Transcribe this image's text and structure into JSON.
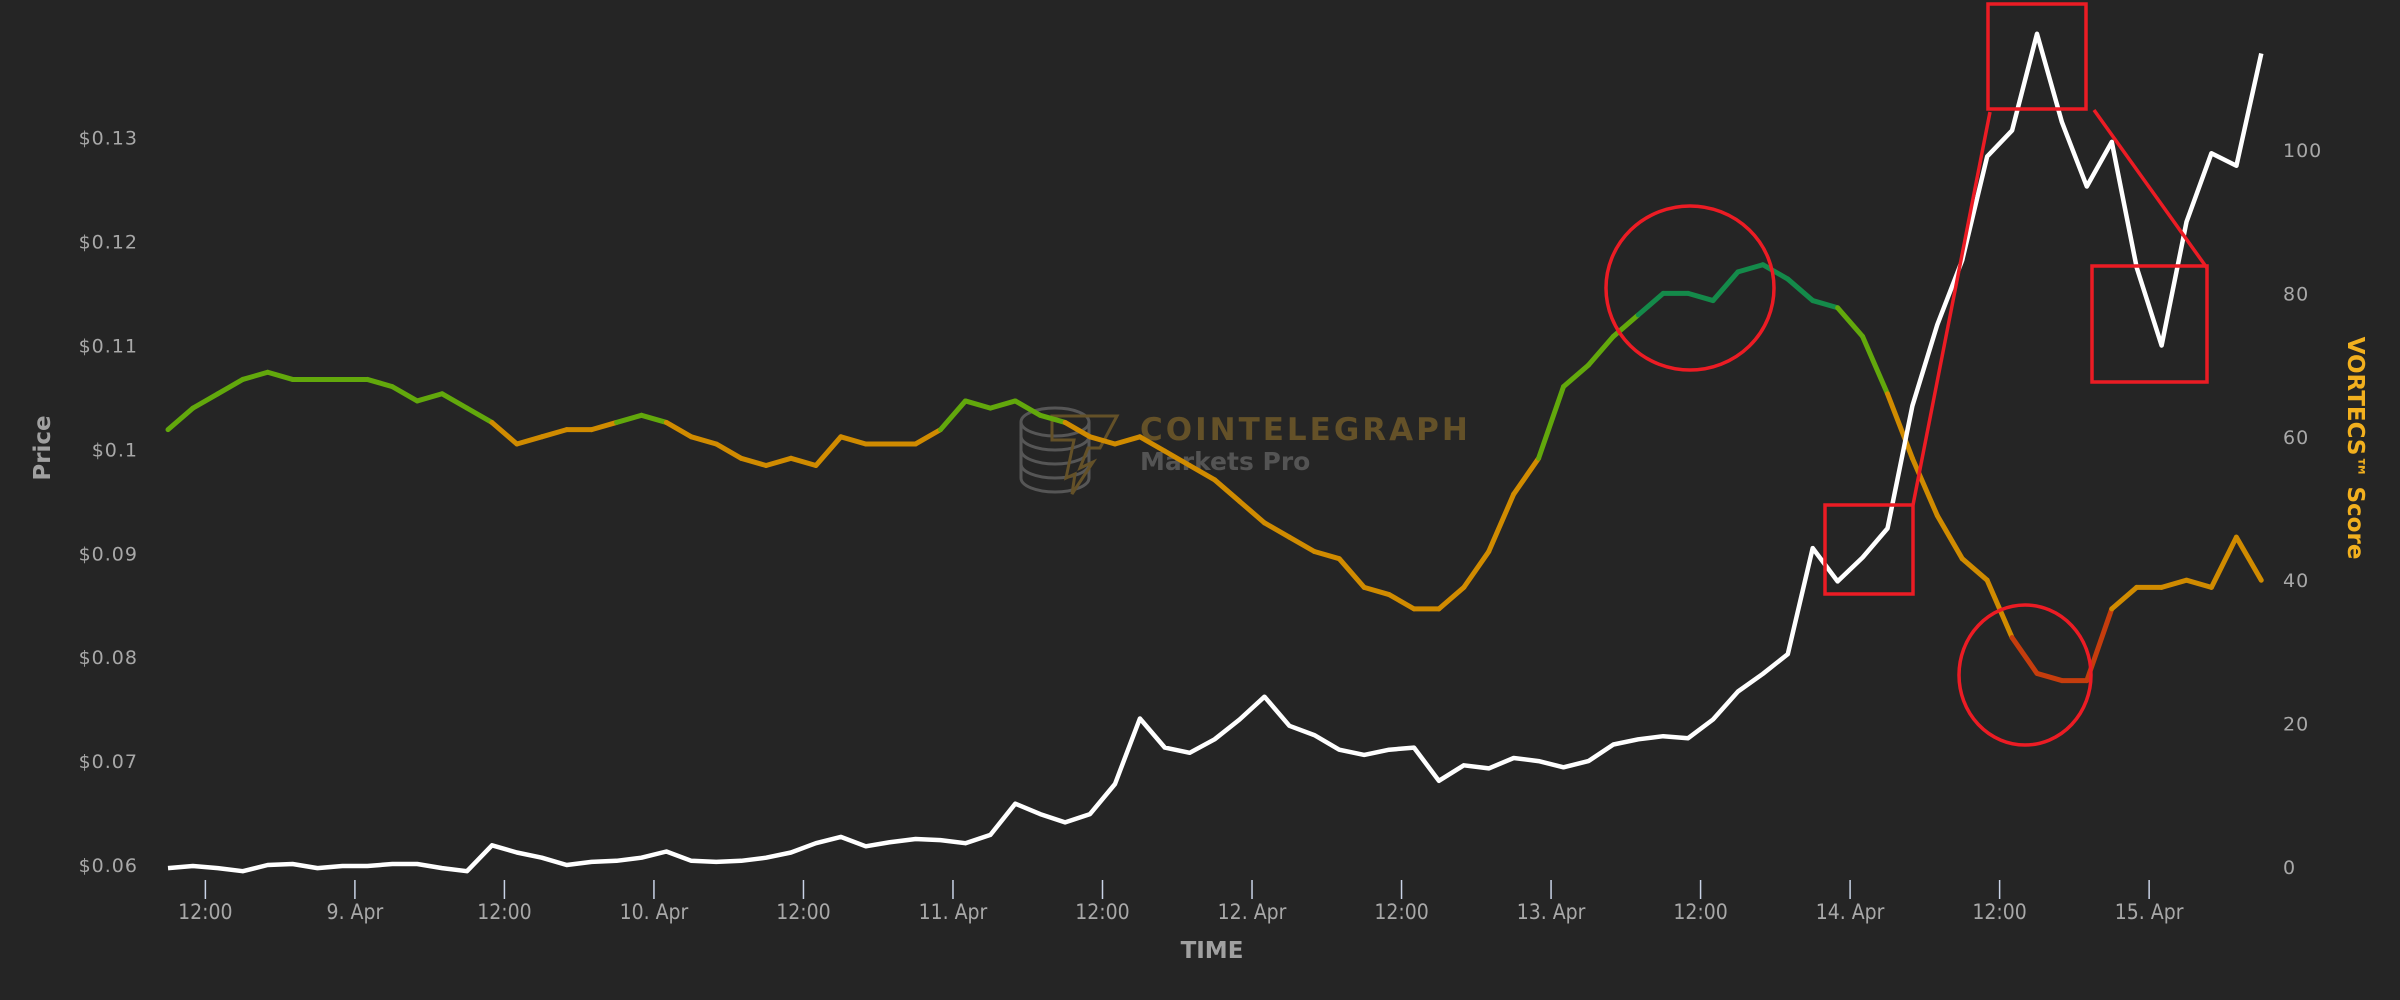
{
  "chart_data": {
    "type": "line",
    "xlabel": "TIME",
    "ylabel_left": "Price",
    "ylabel_right": "VORTECS™ Score",
    "watermark": {
      "title": "COINTELEGRAPH",
      "subtitle": "Markets Pro"
    },
    "grid": false,
    "legend": "none",
    "y_left": {
      "ylim": [
        0.06,
        0.13
      ],
      "ticks": [
        0.06,
        0.07,
        0.08,
        0.09,
        0.1,
        0.11,
        0.12,
        0.13
      ],
      "tick_labels": [
        "$0.06",
        "$0.07",
        "$0.08",
        "$0.09",
        "$0.1",
        "$0.11",
        "$0.12",
        "$0.13"
      ]
    },
    "y_right": {
      "ylim": [
        0,
        100
      ],
      "ticks": [
        0,
        20,
        40,
        60,
        80,
        100
      ],
      "tick_labels": [
        "0",
        "20",
        "40",
        "60",
        "80",
        "100"
      ]
    },
    "x_ticks": [
      {
        "t": "8 Apr 12:00",
        "label": "12:00"
      },
      {
        "t": "9 Apr 00:00",
        "label": "9. Apr"
      },
      {
        "t": "9 Apr 12:00",
        "label": "12:00"
      },
      {
        "t": "10 Apr 00:00",
        "label": "10. Apr"
      },
      {
        "t": "10 Apr 12:00",
        "label": "12:00"
      },
      {
        "t": "11 Apr 00:00",
        "label": "11. Apr"
      },
      {
        "t": "11 Apr 12:00",
        "label": "12:00"
      },
      {
        "t": "12 Apr 00:00",
        "label": "12. Apr"
      },
      {
        "t": "12 Apr 12:00",
        "label": "12:00"
      },
      {
        "t": "13 Apr 00:00",
        "label": "13. Apr"
      },
      {
        "t": "13 Apr 12:00",
        "label": "12:00"
      },
      {
        "t": "14 Apr 00:00",
        "label": "14. Apr"
      },
      {
        "t": "14 Apr 12:00",
        "label": "12:00"
      },
      {
        "t": "15 Apr 00:00",
        "label": "15. Apr"
      }
    ],
    "x": [
      "8 Apr 09:00",
      "8 Apr 11:00",
      "8 Apr 13:00",
      "8 Apr 15:00",
      "8 Apr 17:00",
      "8 Apr 19:00",
      "8 Apr 21:00",
      "8 Apr 23:00",
      "9 Apr 01:00",
      "9 Apr 03:00",
      "9 Apr 05:00",
      "9 Apr 07:00",
      "9 Apr 09:00",
      "9 Apr 11:00",
      "9 Apr 13:00",
      "9 Apr 15:00",
      "9 Apr 17:00",
      "9 Apr 19:00",
      "9 Apr 21:00",
      "9 Apr 23:00",
      "10 Apr 01:00",
      "10 Apr 03:00",
      "10 Apr 05:00",
      "10 Apr 07:00",
      "10 Apr 09:00",
      "10 Apr 11:00",
      "10 Apr 13:00",
      "10 Apr 15:00",
      "10 Apr 17:00",
      "10 Apr 19:00",
      "10 Apr 21:00",
      "10 Apr 23:00",
      "11 Apr 01:00",
      "11 Apr 03:00",
      "11 Apr 05:00",
      "11 Apr 07:00",
      "11 Apr 09:00",
      "11 Apr 11:00",
      "11 Apr 13:00",
      "11 Apr 15:00",
      "11 Apr 17:00",
      "11 Apr 19:00",
      "11 Apr 21:00",
      "11 Apr 23:00",
      "12 Apr 01:00",
      "12 Apr 03:00",
      "12 Apr 05:00",
      "12 Apr 07:00",
      "12 Apr 09:00",
      "12 Apr 11:00",
      "12 Apr 13:00",
      "12 Apr 15:00",
      "12 Apr 17:00",
      "12 Apr 19:00",
      "12 Apr 21:00",
      "12 Apr 23:00",
      "13 Apr 01:00",
      "13 Apr 03:00",
      "13 Apr 05:00",
      "13 Apr 07:00",
      "13 Apr 09:00",
      "13 Apr 11:00",
      "13 Apr 13:00",
      "13 Apr 15:00",
      "13 Apr 17:00",
      "13 Apr 19:00",
      "13 Apr 21:00",
      "13 Apr 23:00",
      "14 Apr 01:00",
      "14 Apr 03:00",
      "14 Apr 05:00",
      "14 Apr 07:00",
      "14 Apr 09:00",
      "14 Apr 11:00",
      "14 Apr 13:00",
      "14 Apr 15:00",
      "14 Apr 17:00",
      "14 Apr 19:00",
      "14 Apr 21:00",
      "14 Apr 23:00",
      "15 Apr 01:00",
      "15 Apr 03:00",
      "15 Apr 05:00",
      "15 Apr 07:00",
      "15 Apr 09:00"
    ],
    "series": [
      {
        "axis": "left",
        "color": "#ffffff",
        "values": [
          0.0597,
          0.0599,
          0.0597,
          0.0594,
          0.06,
          0.0601,
          0.0597,
          0.0599,
          0.0599,
          0.0601,
          0.0601,
          0.0597,
          0.0594,
          0.0619,
          0.0612,
          0.0607,
          0.06,
          0.0603,
          0.0604,
          0.0607,
          0.0613,
          0.0604,
          0.0603,
          0.0604,
          0.0607,
          0.0612,
          0.0621,
          0.0627,
          0.0618,
          0.0622,
          0.0625,
          0.0624,
          0.0621,
          0.0629,
          0.0659,
          0.0649,
          0.0641,
          0.0649,
          0.0678,
          0.0741,
          0.0713,
          0.0708,
          0.0721,
          0.074,
          0.0762,
          0.0734,
          0.0725,
          0.0711,
          0.0706,
          0.0711,
          0.0713,
          0.0681,
          0.0696,
          0.0693,
          0.0703,
          0.07,
          0.0694,
          0.07,
          0.0716,
          0.0721,
          0.0724,
          0.0722,
          0.074,
          0.0767,
          0.0784,
          0.0803,
          0.0905,
          0.0873,
          0.0896,
          0.0924,
          0.1042,
          0.112,
          0.1182,
          0.1282,
          0.1307,
          0.14,
          0.1315,
          0.1253,
          0.1296,
          0.1175,
          0.11,
          0.1219,
          0.1285,
          0.1273,
          0.1381
        ]
      },
      {
        "axis": "right",
        "color_by_value": true,
        "values": [
          61,
          64,
          66,
          68,
          69,
          68,
          68,
          68,
          68,
          67,
          65,
          66,
          64,
          62,
          59,
          60,
          61,
          61,
          62,
          63,
          62,
          60,
          59,
          57,
          56,
          57,
          56,
          60,
          59,
          59,
          59,
          61,
          65,
          64,
          65,
          63,
          62,
          60,
          59,
          60,
          58,
          56,
          54,
          51,
          48,
          46,
          44,
          43,
          39,
          38,
          36,
          36,
          39,
          44,
          52,
          57,
          67,
          70,
          74,
          77,
          80,
          80,
          79,
          83,
          84,
          82,
          79,
          78,
          74,
          66,
          57,
          49,
          43,
          40,
          32,
          27,
          26,
          26,
          36,
          39,
          39,
          40,
          39,
          46,
          40
        ]
      }
    ],
    "score_color_bands": [
      {
        "min": 0,
        "max": 32,
        "color": "#c53d0d"
      },
      {
        "min": 32,
        "max": 62,
        "color": "#d08b00"
      },
      {
        "min": 62,
        "max": 77,
        "color": "#62a80c"
      },
      {
        "min": 77,
        "max": 100,
        "color": "#148a4a"
      }
    ],
    "annotation_color": "#ec1c24"
  }
}
